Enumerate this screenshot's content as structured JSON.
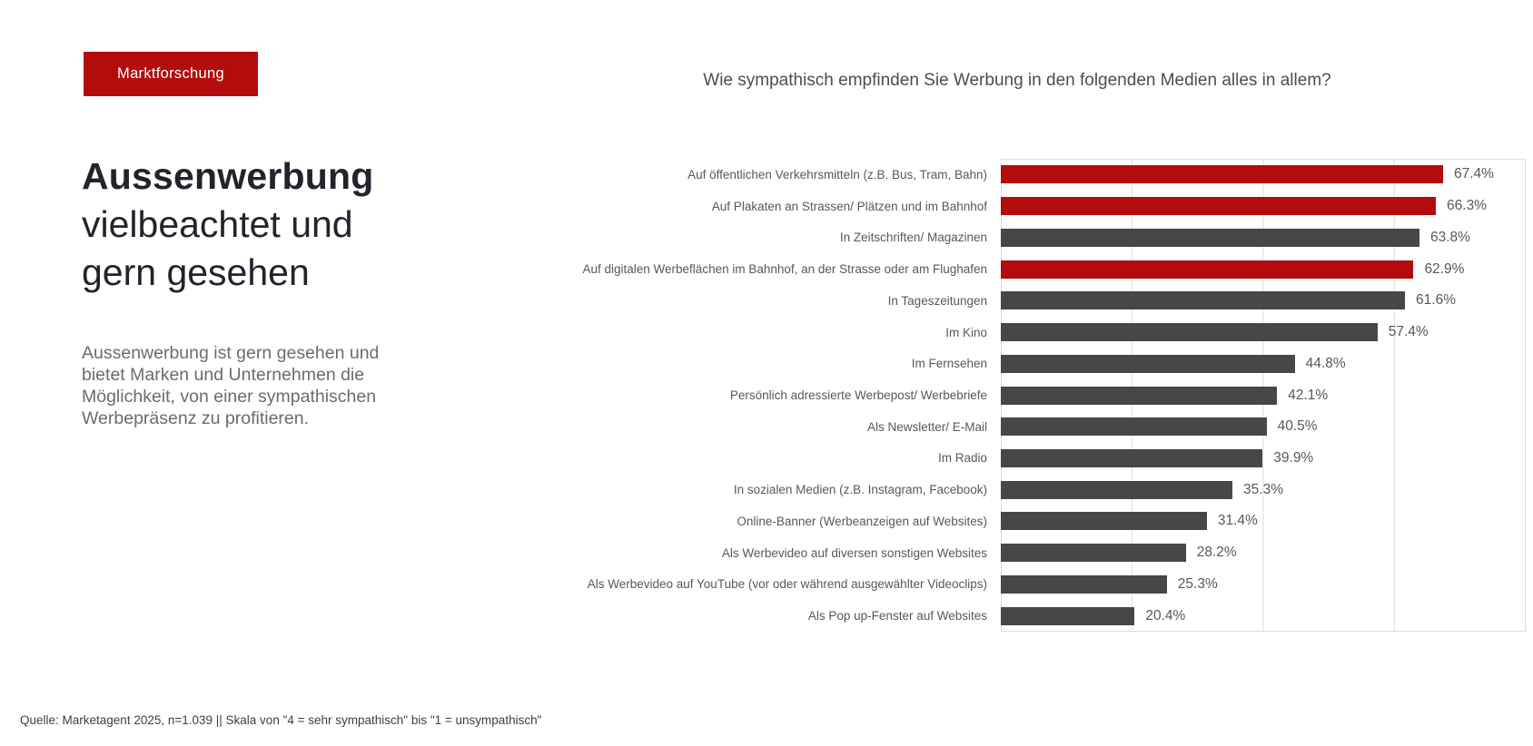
{
  "badge": {
    "label": "Marktforschung"
  },
  "headline": {
    "bold": "Aussenwerbung",
    "rest": "vielbeachtet und gern gesehen"
  },
  "description": "Aussenwerbung ist gern gesehen und bietet Marken und Unternehmen die Möglichkeit, von einer sympathischen Werbepräsenz zu profitieren.",
  "source": "Quelle: Marketagent 2025, n=1.039 || Skala von \"4 = sehr sympathisch\" bis \"1 = unsympathisch\"",
  "colors": {
    "accent_red": "#b30c0d",
    "bar_gray": "#474747",
    "gridline": "#dcdcdc"
  },
  "chart_data": {
    "type": "bar",
    "orientation": "horizontal",
    "title": "Wie sympathisch empfinden Sie Werbung in den folgenden Medien alles in allem?",
    "xlim": [
      0,
      80
    ],
    "gridlines_percent": [
      0,
      20,
      40,
      60,
      80
    ],
    "grid": true,
    "legend": false,
    "categories": [
      "Auf öffentlichen Verkehrsmitteln (z.B. Bus, Tram, Bahn)",
      "Auf Plakaten an Strassen/ Plätzen und im Bahnhof",
      "In Zeitschriften/ Magazinen",
      "Auf digitalen Werbeflächen im Bahnhof, an der Strasse oder am Flughafen",
      "In Tageszeitungen",
      "Im Kino",
      "Im Fernsehen",
      "Persönlich adressierte Werbepost/ Werbebriefe",
      "Als Newsletter/ E-Mail",
      "Im Radio",
      "In sozialen Medien (z.B. Instagram, Facebook)",
      "Online-Banner (Werbeanzeigen auf Websites)",
      "Als Werbevideo auf diversen sonstigen Websites",
      "Als Werbevideo auf YouTube (vor oder während ausgewählter Videoclips)",
      "Als Pop up-Fenster auf Websites"
    ],
    "values": [
      67.4,
      66.3,
      63.8,
      62.9,
      61.6,
      57.4,
      44.8,
      42.1,
      40.5,
      39.9,
      35.3,
      31.4,
      28.2,
      25.3,
      20.4
    ],
    "value_labels": [
      "67.4%",
      "66.3%",
      "63.8%",
      "62.9%",
      "61.6%",
      "57.4%",
      "44.8%",
      "42.1%",
      "40.5%",
      "39.9%",
      "35.3%",
      "31.4%",
      "28.2%",
      "25.3%",
      "20.4%"
    ],
    "highlighted": [
      true,
      true,
      false,
      true,
      false,
      false,
      false,
      false,
      false,
      false,
      false,
      false,
      false,
      false,
      false
    ]
  }
}
